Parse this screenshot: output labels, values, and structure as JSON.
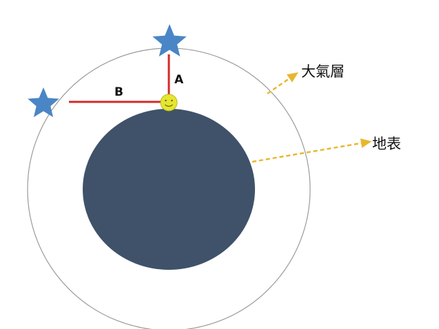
{
  "labels": {
    "atmosphere": "大氣層",
    "surface": "地表",
    "segment_a": "A",
    "segment_b": "B"
  },
  "colors": {
    "background": "#ffffff",
    "atmosphere_outline": "#9a9a9a",
    "earth": "#3f526a",
    "segment": "#d32a2a",
    "star": "#4a86c5",
    "observer_face": "#e6e62e",
    "arrow": "#e8b730"
  },
  "icons": {
    "star": "star-icon",
    "observer": "smiley-face-icon",
    "arrow": "dashed-arrow-icon"
  }
}
